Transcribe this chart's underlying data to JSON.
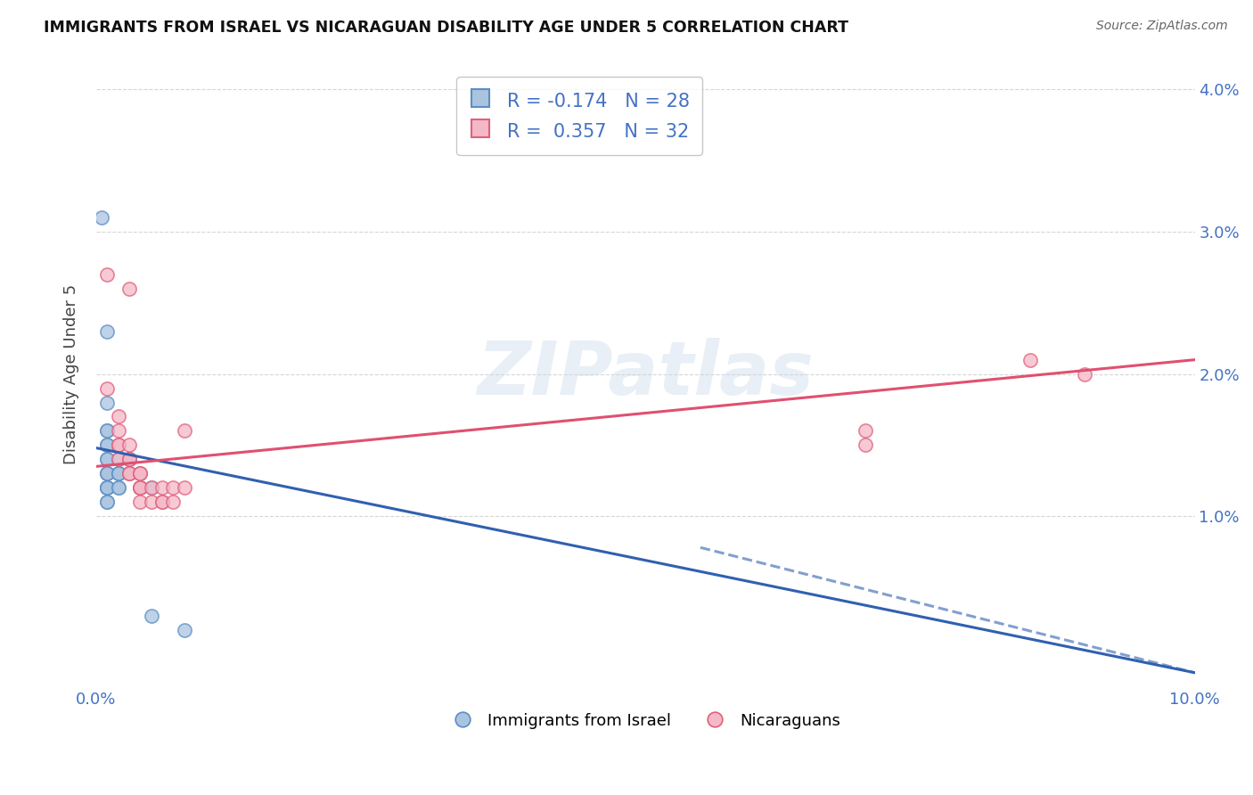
{
  "title": "IMMIGRANTS FROM ISRAEL VS NICARAGUAN DISABILITY AGE UNDER 5 CORRELATION CHART",
  "source": "Source: ZipAtlas.com",
  "ylabel": "Disability Age Under 5",
  "xlim": [
    0.0,
    0.1
  ],
  "ylim": [
    -0.002,
    0.042
  ],
  "israel_color": "#aac4e0",
  "israel_edge_color": "#5b8ec4",
  "nicaraguan_color": "#f4b8c8",
  "nicaraguan_edge_color": "#e0607a",
  "israel_line_color": "#3060b0",
  "nicaraguan_line_color": "#e05070",
  "watermark_text": "ZIPatlas",
  "legend_labels_bottom": [
    "Immigrants from Israel",
    "Nicaraguans"
  ],
  "israel_points": [
    [
      0.0005,
      0.031
    ],
    [
      0.001,
      0.023
    ],
    [
      0.001,
      0.018
    ],
    [
      0.001,
      0.016
    ],
    [
      0.001,
      0.016
    ],
    [
      0.001,
      0.015
    ],
    [
      0.001,
      0.015
    ],
    [
      0.001,
      0.014
    ],
    [
      0.001,
      0.014
    ],
    [
      0.001,
      0.013
    ],
    [
      0.001,
      0.013
    ],
    [
      0.001,
      0.013
    ],
    [
      0.001,
      0.012
    ],
    [
      0.001,
      0.012
    ],
    [
      0.001,
      0.012
    ],
    [
      0.001,
      0.012
    ],
    [
      0.001,
      0.011
    ],
    [
      0.001,
      0.011
    ],
    [
      0.002,
      0.014
    ],
    [
      0.002,
      0.013
    ],
    [
      0.002,
      0.013
    ],
    [
      0.002,
      0.013
    ],
    [
      0.002,
      0.012
    ],
    [
      0.002,
      0.012
    ],
    [
      0.003,
      0.014
    ],
    [
      0.003,
      0.013
    ],
    [
      0.004,
      0.012
    ],
    [
      0.005,
      0.012
    ],
    [
      0.005,
      0.003
    ],
    [
      0.008,
      0.002
    ]
  ],
  "nicaraguan_points": [
    [
      0.001,
      0.027
    ],
    [
      0.003,
      0.026
    ],
    [
      0.001,
      0.019
    ],
    [
      0.002,
      0.017
    ],
    [
      0.002,
      0.016
    ],
    [
      0.002,
      0.015
    ],
    [
      0.002,
      0.015
    ],
    [
      0.002,
      0.014
    ],
    [
      0.003,
      0.015
    ],
    [
      0.003,
      0.014
    ],
    [
      0.003,
      0.014
    ],
    [
      0.003,
      0.013
    ],
    [
      0.003,
      0.013
    ],
    [
      0.004,
      0.013
    ],
    [
      0.004,
      0.013
    ],
    [
      0.004,
      0.013
    ],
    [
      0.004,
      0.012
    ],
    [
      0.004,
      0.012
    ],
    [
      0.004,
      0.012
    ],
    [
      0.004,
      0.011
    ],
    [
      0.005,
      0.012
    ],
    [
      0.005,
      0.011
    ],
    [
      0.006,
      0.012
    ],
    [
      0.006,
      0.011
    ],
    [
      0.006,
      0.011
    ],
    [
      0.007,
      0.012
    ],
    [
      0.007,
      0.011
    ],
    [
      0.008,
      0.016
    ],
    [
      0.008,
      0.012
    ],
    [
      0.085,
      0.021
    ],
    [
      0.09,
      0.02
    ],
    [
      0.07,
      0.016
    ],
    [
      0.07,
      0.015
    ]
  ]
}
